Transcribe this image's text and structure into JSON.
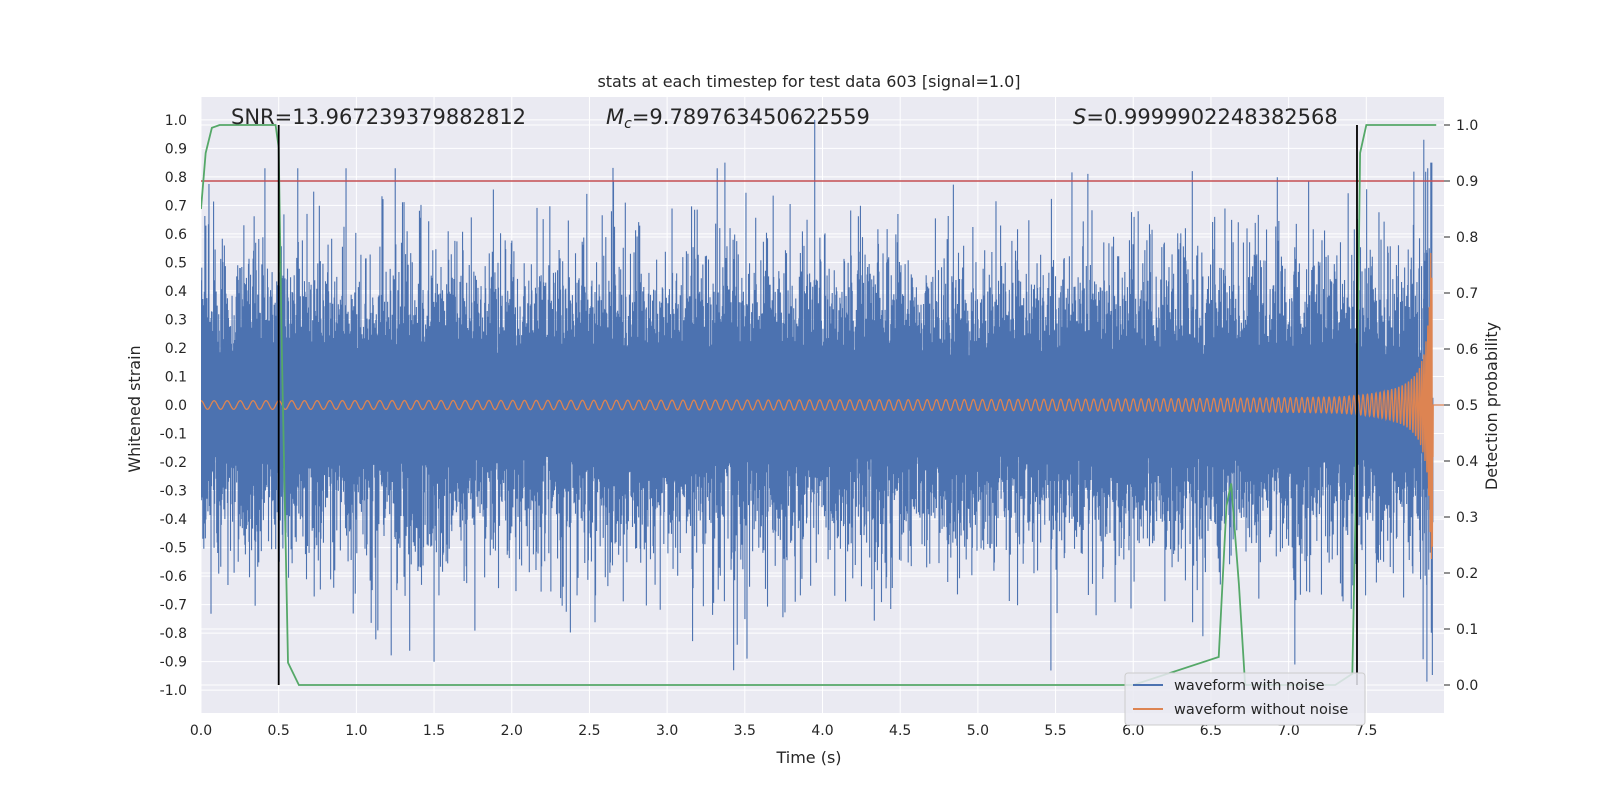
{
  "chart_data": {
    "type": "line",
    "title": "stats at each timestep for test data 603 [signal=1.0]",
    "xlabel": "Time (s)",
    "ylabel": "Whitened strain",
    "y2label": "Detection probability",
    "xlim": [
      0.0,
      8.0
    ],
    "ylim": [
      -1.08,
      1.08
    ],
    "y2lim": [
      -0.05,
      1.05
    ],
    "x_ticks": [
      0.0,
      0.5,
      1.0,
      1.5,
      2.0,
      2.5,
      3.0,
      3.5,
      4.0,
      4.5,
      5.0,
      5.5,
      6.0,
      6.5,
      7.0,
      7.5
    ],
    "x_tick_labels": [
      "0.0",
      "0.5",
      "1.0",
      "1.5",
      "2.0",
      "2.5",
      "3.0",
      "3.5",
      "4.0",
      "4.5",
      "5.0",
      "5.5",
      "6.0",
      "6.5",
      "7.0",
      "7.5"
    ],
    "y_ticks": [
      1.0,
      0.9,
      0.8,
      0.7,
      0.6,
      0.5,
      0.4,
      0.3,
      0.2,
      0.1,
      0.0,
      -0.1,
      -0.2,
      -0.3,
      -0.4,
      -0.5,
      -0.6,
      -0.7,
      -0.8,
      -0.9,
      -1.0
    ],
    "y_tick_labels": [
      "1.0",
      "0.9",
      "0.8",
      "0.7",
      "0.6",
      "0.5",
      "0.4",
      "0.3",
      "0.2",
      "0.1",
      "0.0",
      "-0.1",
      "-0.2",
      "-0.3",
      "-0.4",
      "-0.5",
      "-0.6",
      "-0.7",
      "-0.8",
      "-0.9",
      "-1.0"
    ],
    "y2_ticks": [
      1.0,
      0.9,
      0.8,
      0.7,
      0.6,
      0.5,
      0.4,
      0.3,
      0.2,
      0.1,
      0.0
    ],
    "y2_tick_labels": [
      "1.0",
      "0.9",
      "0.8",
      "0.7",
      "0.6",
      "0.5",
      "0.4",
      "0.3",
      "0.2",
      "0.1",
      "0.0"
    ],
    "grid": true,
    "legend_placement": "lower-right",
    "annotations": {
      "snr": "SNR=13.967239379882812",
      "mc_symbol": "M",
      "mc_sub": "c",
      "mc_value": "=9.789763450622559",
      "s_symbol": "S",
      "s_value": "=0.9999902248382568"
    },
    "threshold_line": {
      "y2": 0.9,
      "color": "#c44e52"
    },
    "vertical_lines": [
      0.5,
      7.44
    ],
    "series": [
      {
        "name": "waveform with noise",
        "color": "#4c72b0",
        "description_values": {
          "noise_envelope": 0.42,
          "peak_max": 1.0,
          "peak_min": -0.97
        }
      },
      {
        "name": "waveform without noise",
        "color": "#dd8452",
        "chirp": {
          "t_merge": 7.93,
          "initial_amplitude": 0.015,
          "peak_amplitude": 0.54,
          "cycles": 150
        }
      },
      {
        "name": "Detection probability",
        "color": "#55a868",
        "axis": "y2",
        "x": [
          0.0,
          0.03,
          0.07,
          0.12,
          0.2,
          0.3,
          0.4,
          0.48,
          0.5,
          0.52,
          0.56,
          0.63,
          1.0,
          2.0,
          3.0,
          4.0,
          5.0,
          6.0,
          6.55,
          6.6,
          6.63,
          6.68,
          6.72,
          6.76,
          7.0,
          7.3,
          7.41,
          7.43,
          7.46,
          7.5,
          7.9,
          7.95
        ],
        "y": [
          0.85,
          0.95,
          0.995,
          1.0,
          1.0,
          1.0,
          1.0,
          1.0,
          0.96,
          0.6,
          0.04,
          0.0,
          0.0,
          0.0,
          0.0,
          0.0,
          0.0,
          0.0,
          0.05,
          0.32,
          0.36,
          0.18,
          0.0,
          0.0,
          0.0,
          0.0,
          0.02,
          0.3,
          0.95,
          1.0,
          1.0,
          1.0
        ]
      }
    ]
  }
}
